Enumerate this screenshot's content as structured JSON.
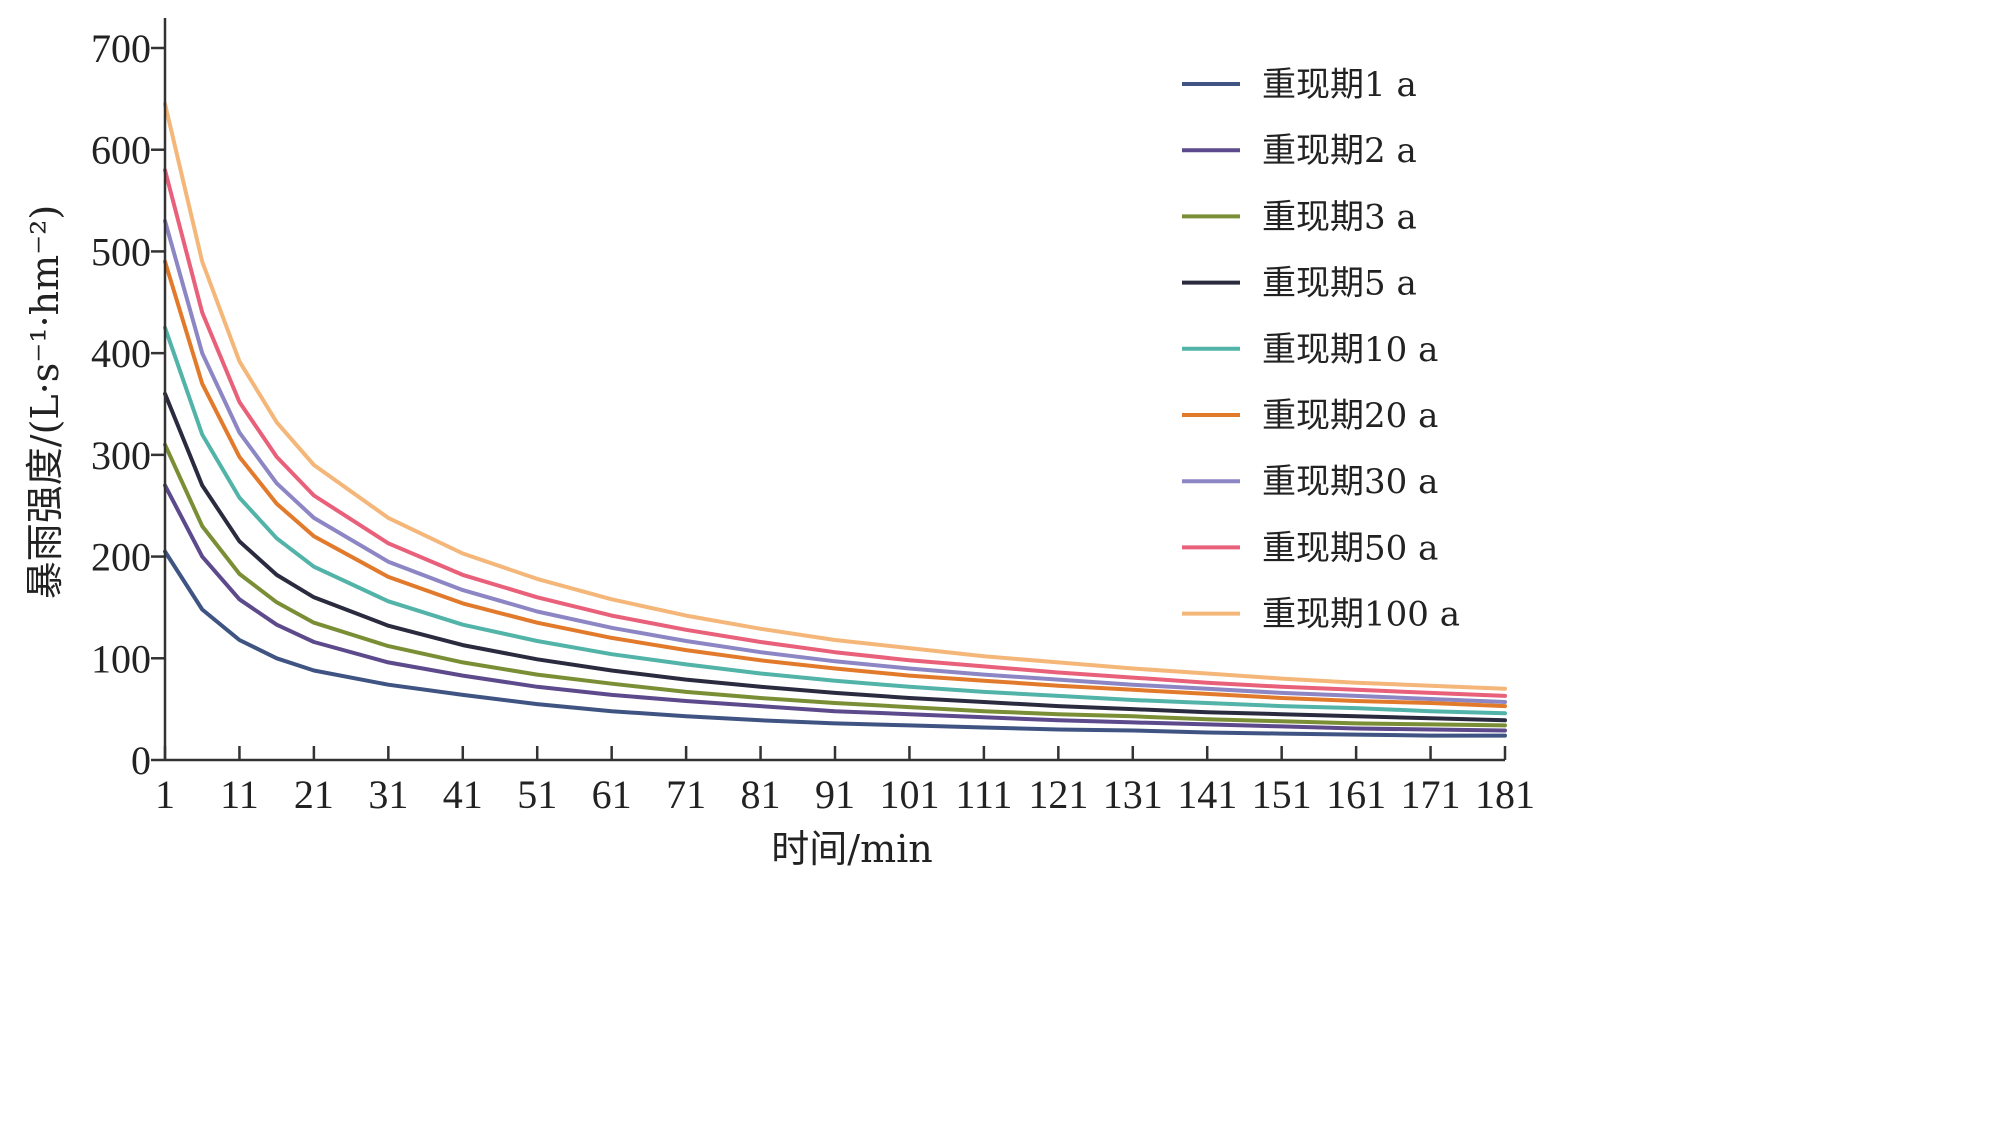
{
  "chart_data": {
    "type": "line",
    "title": "",
    "xlabel": "时间/min",
    "ylabel": "暴雨强度/(L·s⁻¹·hm⁻²)",
    "xlim": [
      1,
      181
    ],
    "ylim": [
      0,
      700
    ],
    "x_ticks": [
      "1",
      "11",
      "21",
      "31",
      "41",
      "51",
      "61",
      "71",
      "81",
      "91",
      "101",
      "111",
      "121",
      "131",
      "141",
      "151",
      "161",
      "171",
      "181"
    ],
    "y_ticks": [
      "0",
      "100",
      "200",
      "300",
      "400",
      "500",
      "600",
      "700"
    ],
    "grid": false,
    "legend_position": "top-right",
    "x": [
      1,
      6,
      11,
      16,
      21,
      31,
      41,
      51,
      61,
      71,
      81,
      91,
      101,
      111,
      121,
      131,
      141,
      151,
      161,
      171,
      181
    ],
    "series": [
      {
        "name": "重现期1 a",
        "color": "#3f5482",
        "values": [
          205,
          148,
          118,
          100,
          88,
          74,
          64,
          55,
          48,
          43,
          39,
          36,
          34,
          32,
          30,
          29,
          27,
          26,
          25,
          24,
          24
        ]
      },
      {
        "name": "重现期2 a",
        "color": "#5d4a8c",
        "values": [
          270,
          200,
          158,
          133,
          116,
          96,
          83,
          72,
          64,
          58,
          53,
          48,
          45,
          42,
          39,
          37,
          35,
          33,
          31,
          30,
          29
        ]
      },
      {
        "name": "重现期3 a",
        "color": "#7a8f35",
        "values": [
          310,
          230,
          183,
          155,
          135,
          112,
          96,
          84,
          75,
          67,
          61,
          56,
          52,
          48,
          45,
          43,
          40,
          38,
          36,
          35,
          34
        ]
      },
      {
        "name": "重现期5 a",
        "color": "#2b2b40",
        "values": [
          360,
          270,
          215,
          182,
          160,
          132,
          113,
          99,
          88,
          79,
          72,
          66,
          61,
          57,
          53,
          50,
          47,
          45,
          43,
          41,
          39
        ]
      },
      {
        "name": "重现期10 a",
        "color": "#52b3a8",
        "values": [
          425,
          320,
          258,
          218,
          190,
          156,
          133,
          117,
          104,
          94,
          85,
          78,
          72,
          67,
          63,
          59,
          56,
          53,
          51,
          48,
          46
        ]
      },
      {
        "name": "重现期20 a",
        "color": "#e27a2c",
        "values": [
          490,
          370,
          298,
          252,
          220,
          180,
          154,
          135,
          120,
          108,
          98,
          90,
          83,
          78,
          73,
          69,
          65,
          61,
          58,
          56,
          53
        ]
      },
      {
        "name": "重现期30 a",
        "color": "#8d86c4",
        "values": [
          530,
          400,
          322,
          272,
          238,
          195,
          167,
          146,
          130,
          117,
          106,
          97,
          90,
          84,
          79,
          74,
          70,
          66,
          63,
          60,
          57
        ]
      },
      {
        "name": "重现期50 a",
        "color": "#e8607a",
        "values": [
          580,
          440,
          352,
          298,
          260,
          213,
          182,
          160,
          142,
          128,
          116,
          106,
          98,
          92,
          86,
          81,
          76,
          72,
          69,
          66,
          63
        ]
      },
      {
        "name": "重现期100 a",
        "color": "#f5b679",
        "values": [
          645,
          490,
          392,
          332,
          290,
          238,
          203,
          178,
          158,
          142,
          129,
          118,
          110,
          102,
          96,
          90,
          85,
          80,
          76,
          73,
          70
        ]
      }
    ]
  }
}
